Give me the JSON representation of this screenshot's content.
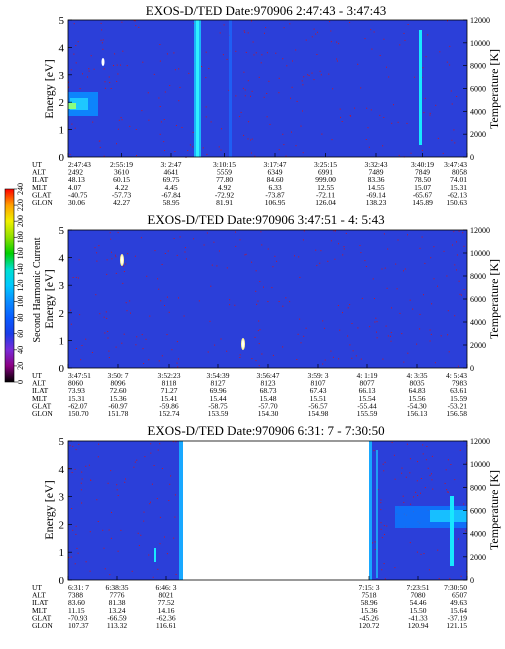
{
  "chart_data": [
    {
      "type": "heatmap",
      "title": "EXOS-D/TED   Date:970906  2:47:43 - 3:47:43",
      "ylabel": "Energy [eV]",
      "y2label": "Temperature [K]",
      "ylim": [
        0,
        5
      ],
      "y2lim": [
        0,
        12000
      ],
      "yticks": [
        "0",
        "1",
        "2",
        "3",
        "4",
        "5"
      ],
      "y2ticks": [
        "0",
        "2000",
        "4000",
        "6000",
        "8000",
        "10000",
        "12000"
      ],
      "rows": [
        {
          "label": "UT",
          "values": [
            "2:47:43",
            "2:55:19",
            "3: 2:47",
            "3:10:15",
            "3:17:47",
            "3:25:15",
            "3:32:43",
            "3:40:19",
            "3:47:43"
          ]
        },
        {
          "label": "ALT",
          "values": [
            "2492",
            "3610",
            "4641",
            "5559",
            "6349",
            "6991",
            "7489",
            "7849",
            "8058"
          ]
        },
        {
          "label": "ILAT",
          "values": [
            "48.13",
            "60.15",
            "69.75",
            "77.80",
            "84.60",
            "999.00",
            "83.36",
            "78.50",
            "74.01"
          ]
        },
        {
          "label": "MLT",
          "values": [
            "4.07",
            "4.22",
            "4.45",
            "4.92",
            "6.33",
            "12.55",
            "14.55",
            "15.07",
            "15.31"
          ]
        },
        {
          "label": "GLAT",
          "values": [
            "-40.75",
            "-57.73",
            "-67.84",
            "-72.92",
            "-73.87",
            "-72.11",
            "-69.14",
            "-65.67",
            "-62.13"
          ]
        },
        {
          "label": "GLON",
          "values": [
            "30.06",
            "42.27",
            "58.95",
            "81.91",
            "106.95",
            "126.04",
            "138.23",
            "145.89",
            "150.63"
          ]
        }
      ]
    },
    {
      "type": "heatmap",
      "title": "EXOS-D/TED   Date:970906  3:47:51 - 4: 5:43",
      "ylabel": "Energy [eV]",
      "y2label": "Temperature [K]",
      "ylim": [
        0,
        5
      ],
      "y2lim": [
        0,
        12000
      ],
      "yticks": [
        "0",
        "1",
        "2",
        "3",
        "4",
        "5"
      ],
      "y2ticks": [
        "0",
        "2000",
        "4000",
        "6000",
        "8000",
        "10000",
        "12000"
      ],
      "rows": [
        {
          "label": "UT",
          "values": [
            "3:47:51",
            "3:50: 7",
            "3:52:23",
            "3:54:39",
            "3:56:47",
            "3:59: 3",
            "4: 1:19",
            "4: 3:35",
            "4: 5:43"
          ]
        },
        {
          "label": "ALT",
          "values": [
            "8060",
            "8096",
            "8118",
            "8127",
            "8123",
            "8107",
            "8077",
            "8035",
            "7983"
          ]
        },
        {
          "label": "ILAT",
          "values": [
            "73.93",
            "72.60",
            "71.27",
            "69.96",
            "68.73",
            "67.43",
            "66.13",
            "64.83",
            "63.61"
          ]
        },
        {
          "label": "MLT",
          "values": [
            "15.31",
            "15.36",
            "15.41",
            "15.44",
            "15.48",
            "15.51",
            "15.54",
            "15.56",
            "15.59"
          ]
        },
        {
          "label": "GLAT",
          "values": [
            "-62.07",
            "-60.97",
            "-59.86",
            "-58.75",
            "-57.70",
            "-56.57",
            "-55.44",
            "-54.30",
            "-53.21"
          ]
        },
        {
          "label": "GLON",
          "values": [
            "150.70",
            "151.78",
            "152.74",
            "153.59",
            "154.30",
            "154.98",
            "155.59",
            "156.13",
            "156.58"
          ]
        }
      ]
    },
    {
      "type": "heatmap",
      "title": "EXOS-D/TED   Date:970906  6:31: 7 - 7:30:50",
      "ylabel": "Energy [eV]",
      "y2label": "Temperature [K]",
      "ylim": [
        0,
        5
      ],
      "y2lim": [
        0,
        12000
      ],
      "yticks": [
        "0",
        "1",
        "2",
        "3",
        "4",
        "5"
      ],
      "y2ticks": [
        "0",
        "2000",
        "4000",
        "6000",
        "8000",
        "10000",
        "12000"
      ],
      "left_group": {
        "UT": [
          "6:31: 7",
          "6:38:35",
          "6:46: 3"
        ],
        "ALT": [
          "7388",
          "7776",
          "8021"
        ],
        "ILAT": [
          "83.60",
          "81.38",
          "77.52"
        ],
        "MLT": [
          "11.15",
          "13.24",
          "14.16"
        ],
        "GLAT": [
          "-70.93",
          "-66.59",
          "-62.36"
        ],
        "GLON": [
          "107.37",
          "113.32",
          "116.61"
        ]
      },
      "right_group": {
        "UT": [
          "7:15: 3",
          "7:23:51",
          "7:30:50"
        ],
        "ALT": [
          "7518",
          "7080",
          "6507"
        ],
        "ILAT": [
          "58.96",
          "54.46",
          "49.63"
        ],
        "MLT": [
          "15.36",
          "15.50",
          "15.64"
        ],
        "GLAT": [
          "-45.26",
          "-41.33",
          "-37.19"
        ],
        "GLON": [
          "120.72",
          "120.94",
          "121.15"
        ]
      },
      "row_labels": [
        "UT",
        "ALT",
        "ILAT",
        "MLT",
        "GLAT",
        "GLON"
      ]
    }
  ],
  "colorbar": {
    "label": "Second Harmonic Current",
    "ticks": [
      "0",
      "20",
      "40",
      "60",
      "80",
      "100",
      "120",
      "140",
      "160",
      "180",
      "200",
      "220",
      "240"
    ],
    "range": [
      0,
      240
    ],
    "colors": [
      "#000000",
      "#8b0082",
      "#7a2bd8",
      "#1a3de8",
      "#0a5cff",
      "#0a8cff",
      "#00c8ff",
      "#00e0d0",
      "#00d000",
      "#90e000",
      "#f0f000",
      "#ffa000",
      "#ff0000"
    ]
  },
  "colors": {
    "background": "#2b3fd9",
    "background_dark": "#1e2fc8",
    "streak": "#18e8ff",
    "speck": "#c0182b"
  }
}
